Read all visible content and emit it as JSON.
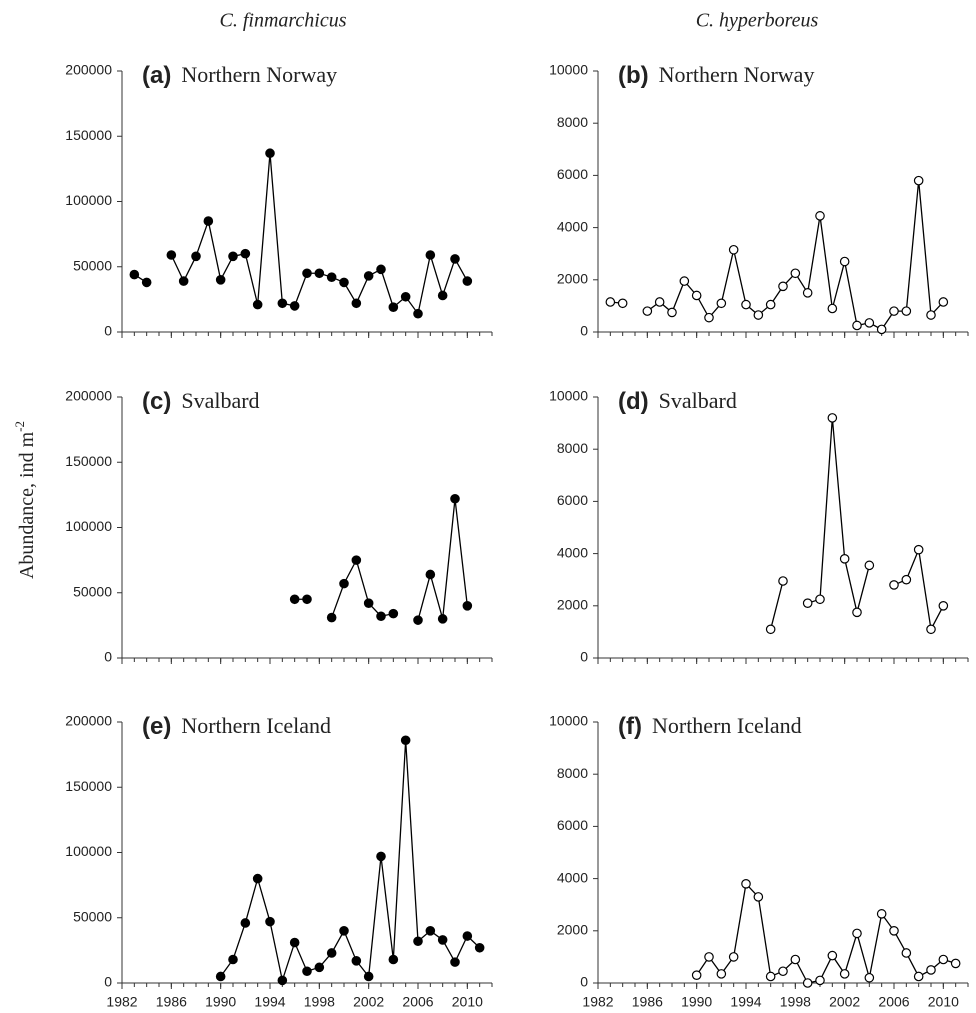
{
  "columns": [
    "C. finmarchicus",
    "C. hyperboreus"
  ],
  "ylabel": "Abundance, ind m",
  "ylabel_sup": "-2",
  "chart_data": [
    {
      "type": "line",
      "label": "(a)",
      "title": "Northern Norway",
      "color": "#000000",
      "marker_fill": "#000000",
      "x": [
        1983,
        1984,
        1985,
        1986,
        1987,
        1988,
        1989,
        1990,
        1991,
        1992,
        1993,
        1994,
        1995,
        1996,
        1997,
        1998,
        1999,
        2000,
        2001,
        2002,
        2003,
        2004,
        2005,
        2006,
        2007,
        2008,
        2009,
        2010
      ],
      "values": [
        44000,
        38000,
        null,
        59000,
        39000,
        58000,
        85000,
        40000,
        58000,
        60000,
        21000,
        137000,
        22000,
        20000,
        45000,
        45000,
        42000,
        38000,
        22000,
        43000,
        48000,
        19000,
        27000,
        14000,
        59000,
        28000,
        56000,
        39000
      ],
      "xlim": [
        1982,
        2012
      ],
      "ylim": [
        0,
        200000
      ],
      "xticks": [
        1982,
        1986,
        1990,
        1994,
        1998,
        2002,
        2006,
        2010
      ],
      "xtick_labels": false,
      "yticks": [
        0,
        50000,
        100000,
        150000,
        200000
      ]
    },
    {
      "type": "line",
      "label": "(b)",
      "title": "Northern Norway",
      "color": "#000000",
      "marker_fill": "#ffffff",
      "x": [
        1983,
        1984,
        1985,
        1986,
        1987,
        1988,
        1989,
        1990,
        1991,
        1992,
        1993,
        1994,
        1995,
        1996,
        1997,
        1998,
        1999,
        2000,
        2001,
        2002,
        2003,
        2004,
        2005,
        2006,
        2007,
        2008,
        2009,
        2010
      ],
      "values": [
        1150,
        1100,
        null,
        800,
        1150,
        750,
        1950,
        1400,
        550,
        1100,
        3150,
        1050,
        650,
        1050,
        1750,
        2250,
        1500,
        4450,
        900,
        2700,
        250,
        350,
        100,
        800,
        800,
        5800,
        650,
        1150
      ],
      "xlim": [
        1982,
        2012
      ],
      "ylim": [
        0,
        10000
      ],
      "xticks": [
        1982,
        1986,
        1990,
        1994,
        1998,
        2002,
        2006,
        2010
      ],
      "xtick_labels": false,
      "yticks": [
        0,
        2000,
        4000,
        6000,
        8000,
        10000
      ]
    },
    {
      "type": "line",
      "label": "(c)",
      "title": "Svalbard",
      "color": "#000000",
      "marker_fill": "#000000",
      "x": [
        1996,
        1997,
        1998,
        1999,
        2000,
        2001,
        2002,
        2003,
        2004,
        2005,
        2006,
        2007,
        2008,
        2009,
        2010
      ],
      "values": [
        45000,
        45000,
        null,
        31000,
        57000,
        75000,
        42000,
        32000,
        34000,
        null,
        29000,
        64000,
        30000,
        122000,
        40000
      ],
      "xlim": [
        1982,
        2012
      ],
      "ylim": [
        0,
        200000
      ],
      "xticks": [
        1982,
        1986,
        1990,
        1994,
        1998,
        2002,
        2006,
        2010
      ],
      "xtick_labels": false,
      "yticks": [
        0,
        50000,
        100000,
        150000,
        200000
      ]
    },
    {
      "type": "line",
      "label": "(d)",
      "title": "Svalbard",
      "color": "#000000",
      "marker_fill": "#ffffff",
      "x": [
        1996,
        1997,
        1998,
        1999,
        2000,
        2001,
        2002,
        2003,
        2004,
        2005,
        2006,
        2007,
        2008,
        2009,
        2010
      ],
      "values": [
        1100,
        2950,
        null,
        2100,
        2250,
        9200,
        3800,
        1750,
        3550,
        null,
        2800,
        3000,
        4150,
        1100,
        2000
      ],
      "xlim": [
        1982,
        2012
      ],
      "ylim": [
        0,
        10000
      ],
      "xticks": [
        1982,
        1986,
        1990,
        1994,
        1998,
        2002,
        2006,
        2010
      ],
      "xtick_labels": false,
      "yticks": [
        0,
        2000,
        4000,
        6000,
        8000,
        10000
      ]
    },
    {
      "type": "line",
      "label": "(e)",
      "title": "Northern Iceland",
      "color": "#000000",
      "marker_fill": "#000000",
      "x": [
        1990,
        1991,
        1992,
        1993,
        1994,
        1995,
        1996,
        1997,
        1998,
        1999,
        2000,
        2001,
        2002,
        2003,
        2004,
        2005,
        2006,
        2007,
        2008,
        2009,
        2010,
        2011
      ],
      "values": [
        5000,
        18000,
        46000,
        80000,
        47000,
        2000,
        31000,
        9000,
        12000,
        23000,
        40000,
        17000,
        5000,
        97000,
        18000,
        186000,
        32000,
        40000,
        33000,
        16000,
        36000,
        27000
      ],
      "xlim": [
        1982,
        2012
      ],
      "ylim": [
        0,
        200000
      ],
      "xticks": [
        1982,
        1986,
        1990,
        1994,
        1998,
        2002,
        2006,
        2010
      ],
      "xtick_labels": true,
      "yticks": [
        0,
        50000,
        100000,
        150000,
        200000
      ]
    },
    {
      "type": "line",
      "label": "(f)",
      "title": "Northern Iceland",
      "color": "#000000",
      "marker_fill": "#ffffff",
      "x": [
        1990,
        1991,
        1992,
        1993,
        1994,
        1995,
        1996,
        1997,
        1998,
        1999,
        2000,
        2001,
        2002,
        2003,
        2004,
        2005,
        2006,
        2007,
        2008,
        2009,
        2010,
        2011
      ],
      "values": [
        300,
        1000,
        350,
        1000,
        3800,
        3300,
        250,
        450,
        900,
        0,
        100,
        1050,
        350,
        1900,
        200,
        2650,
        2000,
        1150,
        250,
        500,
        900,
        750
      ],
      "xlim": [
        1982,
        2012
      ],
      "ylim": [
        0,
        10000
      ],
      "xticks": [
        1982,
        1986,
        1990,
        1994,
        1998,
        2002,
        2006,
        2010
      ],
      "xtick_labels": true,
      "yticks": [
        0,
        2000,
        4000,
        6000,
        8000,
        10000
      ]
    }
  ]
}
